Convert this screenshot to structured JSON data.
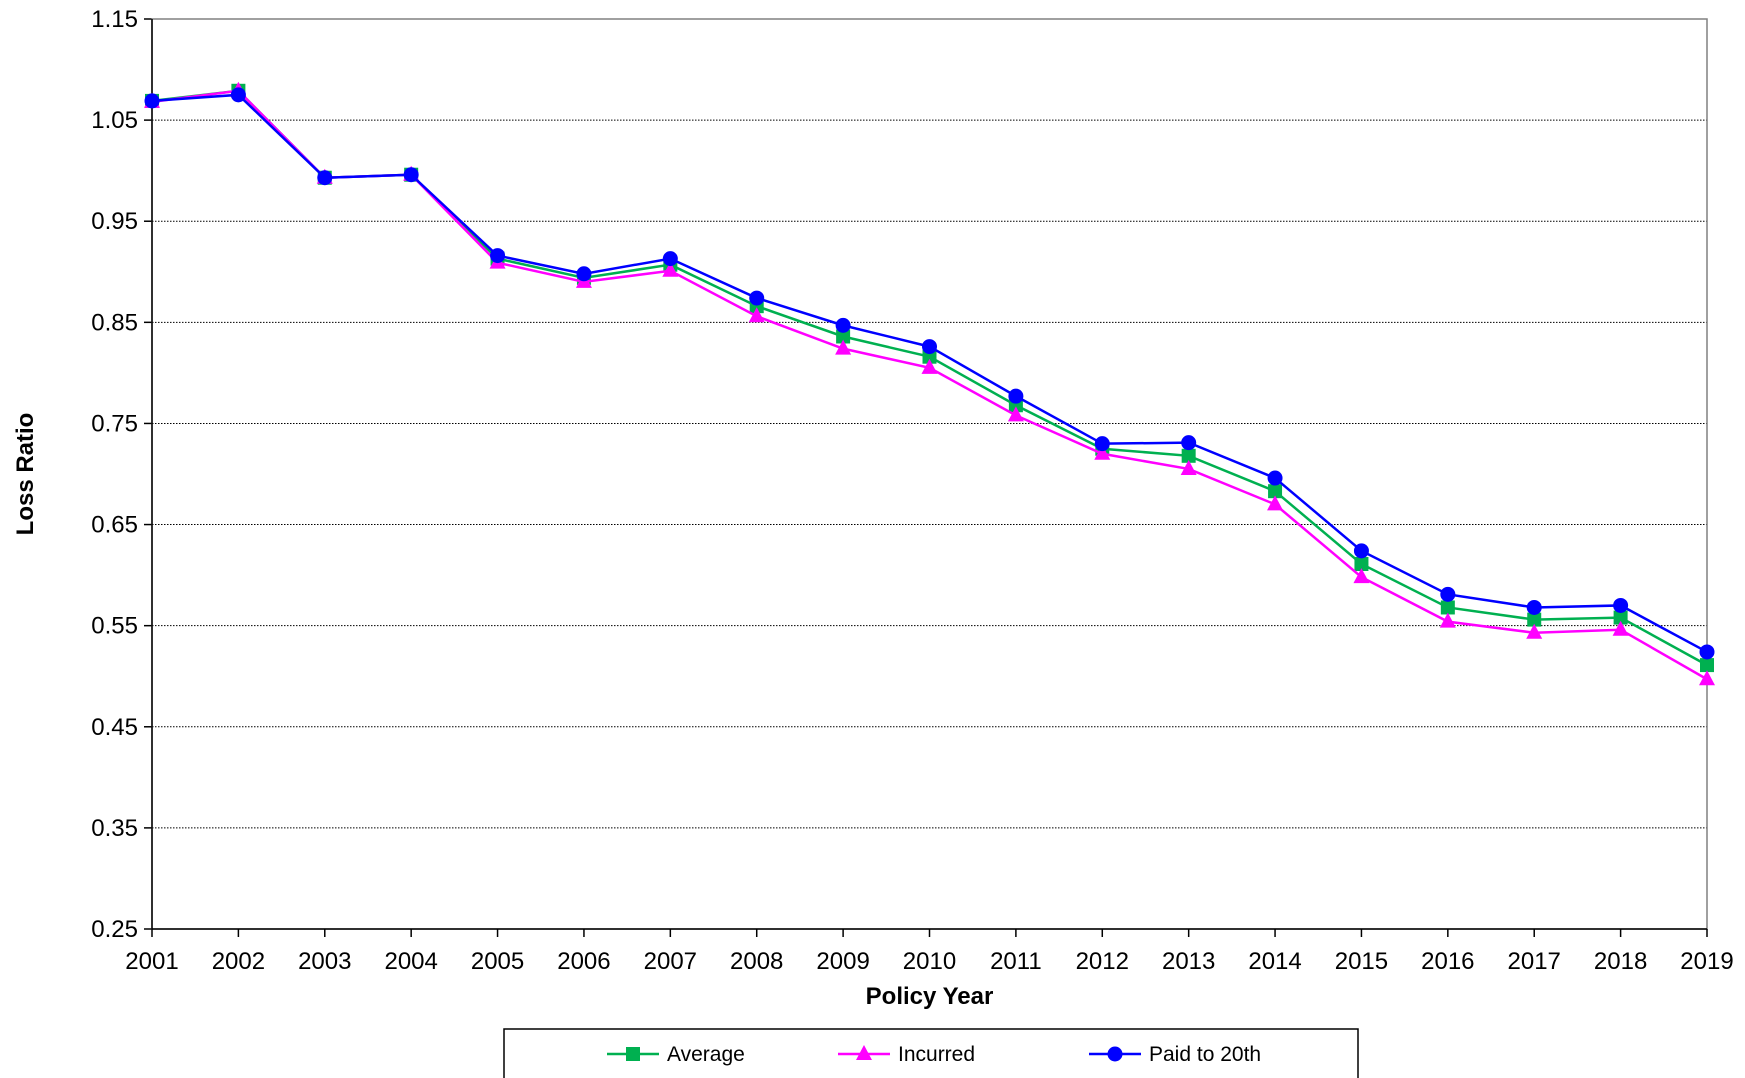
{
  "chart_data": {
    "type": "line",
    "title": "",
    "xlabel": "Policy Year",
    "ylabel": "Loss Ratio",
    "ylim": [
      0.25,
      1.15
    ],
    "yticks": [
      0.25,
      0.35,
      0.45,
      0.55,
      0.65,
      0.75,
      0.85,
      0.95,
      1.05,
      1.15
    ],
    "ytick_labels": [
      "0.25",
      "0.35",
      "0.45",
      "0.55",
      "0.65",
      "0.75",
      "0.85",
      "0.95",
      "1.05",
      "1.15"
    ],
    "grid": "horizontal dotted",
    "legend_position": "bottom-center",
    "x": [
      "2001",
      "2002",
      "2003",
      "2004",
      "2005",
      "2006",
      "2007",
      "2008",
      "2009",
      "2010",
      "2011",
      "2012",
      "2013",
      "2014",
      "2015",
      "2016",
      "2017",
      "2018",
      "2019"
    ],
    "series": [
      {
        "name": "Average",
        "color": "#00b050",
        "marker": "square",
        "values": [
          1.069,
          1.079,
          0.993,
          0.996,
          0.913,
          0.894,
          0.907,
          0.866,
          0.836,
          0.816,
          0.768,
          0.725,
          0.718,
          0.683,
          0.611,
          0.568,
          0.556,
          0.558,
          0.511
        ]
      },
      {
        "name": "Incurred",
        "color": "#ff00ff",
        "marker": "triangle",
        "values": [
          1.068,
          1.079,
          0.993,
          0.996,
          0.909,
          0.89,
          0.901,
          0.856,
          0.824,
          0.805,
          0.758,
          0.72,
          0.705,
          0.67,
          0.598,
          0.554,
          0.543,
          0.546,
          0.497
        ]
      },
      {
        "name": "Paid to 20th",
        "color": "#0000ff",
        "marker": "circle",
        "values": [
          1.069,
          1.075,
          0.993,
          0.996,
          0.916,
          0.898,
          0.913,
          0.874,
          0.847,
          0.826,
          0.777,
          0.73,
          0.731,
          0.696,
          0.624,
          0.581,
          0.568,
          0.57,
          0.524
        ]
      }
    ]
  }
}
